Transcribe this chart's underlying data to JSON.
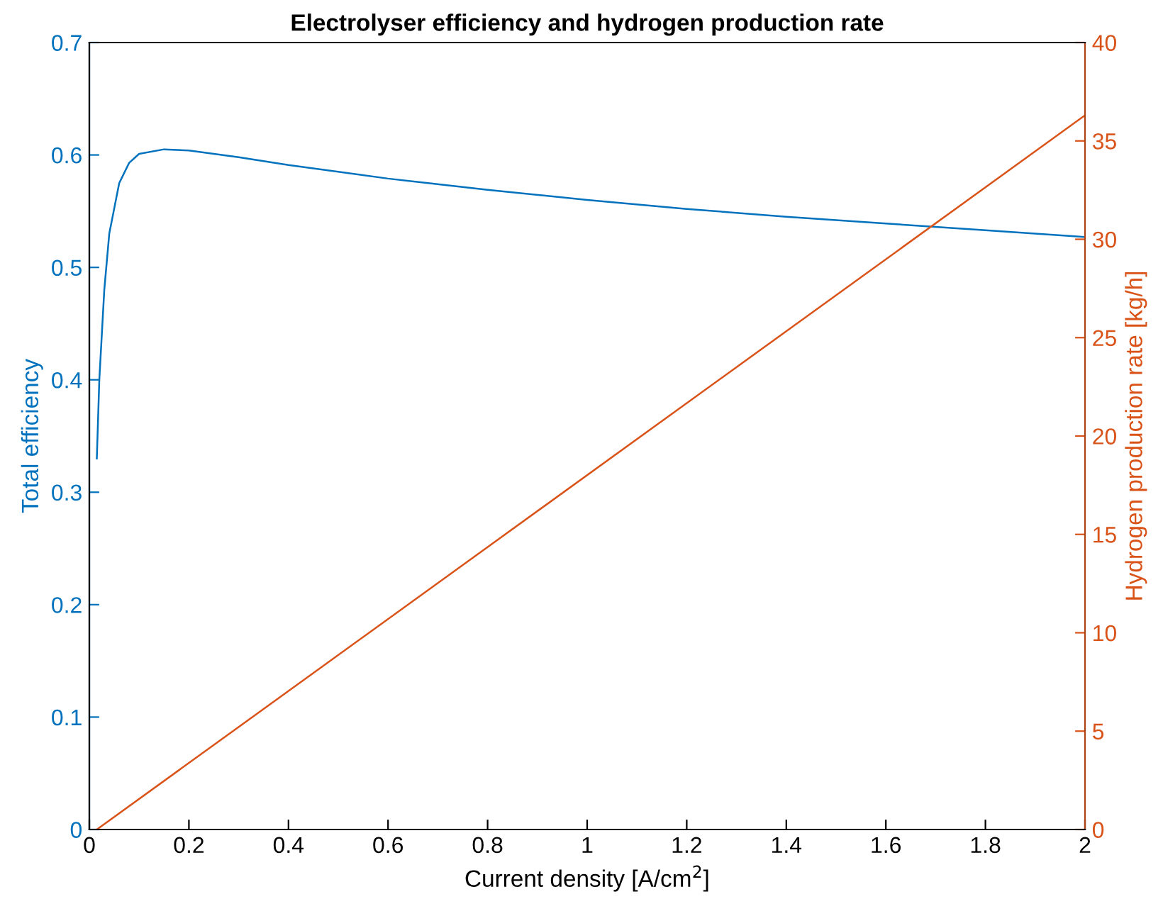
{
  "chart_data": {
    "type": "line",
    "title": "Electrolyser efficiency and hydrogen production rate",
    "xlabel": "Current density [A/cm$^{2}$]",
    "ylabel": "Total efficiency",
    "y2label": "Hydrogen production rate [kg/h]",
    "xlim": [
      0,
      2
    ],
    "xticks": [
      0,
      0.2,
      0.4,
      0.6,
      0.8,
      1,
      1.2,
      1.4,
      1.6,
      1.8,
      2
    ],
    "ylim": [
      0,
      0.7
    ],
    "yticks": [
      0,
      0.1,
      0.2,
      0.3,
      0.4,
      0.5,
      0.6,
      0.7
    ],
    "y2lim": [
      0,
      40
    ],
    "y2ticks": [
      0,
      5,
      10,
      15,
      20,
      25,
      30,
      35,
      40
    ],
    "grid": false,
    "legend": false,
    "line_style": "solid",
    "marker": "none",
    "series": [
      {
        "color": "#0072bd",
        "x": [
          0.015,
          0.02,
          0.03,
          0.04,
          0.06,
          0.08,
          0.1,
          0.15,
          0.2,
          0.3,
          0.4,
          0.6,
          0.8,
          1.0,
          1.2,
          1.4,
          1.6,
          1.8,
          2.0
        ],
        "values": [
          0.33,
          0.4,
          0.48,
          0.53,
          0.575,
          0.593,
          0.601,
          0.605,
          0.604,
          0.598,
          0.591,
          0.579,
          0.569,
          0.56,
          0.552,
          0.545,
          0.539,
          0.533,
          0.527
        ]
      },
      {
        "color": "#d95319",
        "axis": "y2",
        "x": [
          0.015,
          2.0
        ],
        "values": [
          0,
          36.3
        ]
      }
    ]
  }
}
